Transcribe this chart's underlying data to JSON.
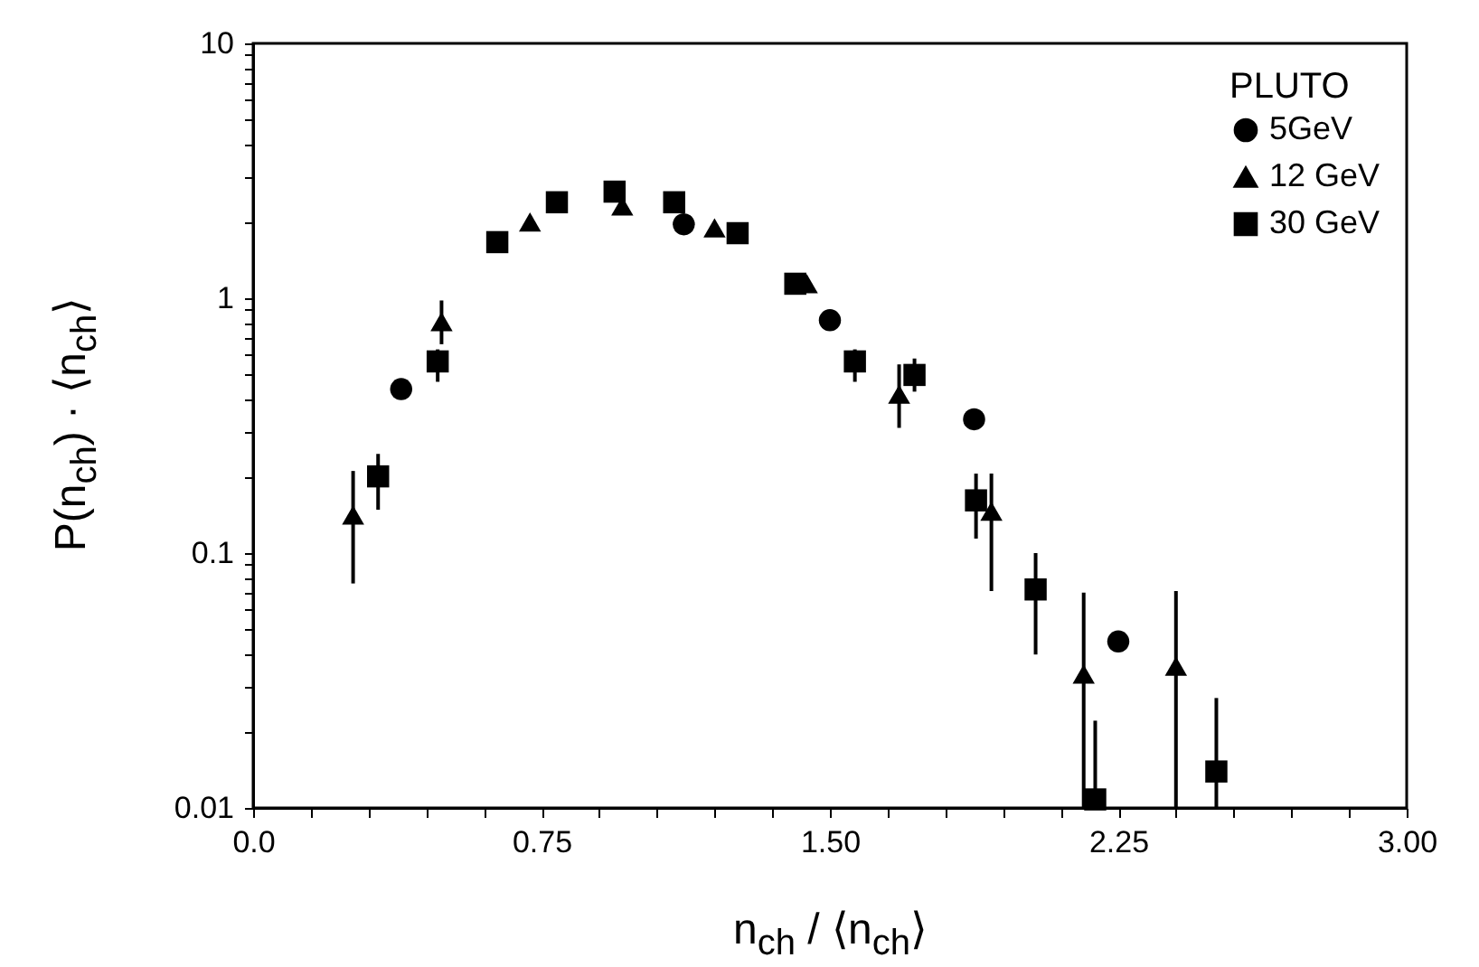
{
  "chart_data": {
    "type": "scatter",
    "xlabel": "n$_{ch}$ / ⟨n$_{ch}$⟩",
    "ylabel": "P(n$_{ch}$) · ⟨n$_{ch}$⟩",
    "legend_title": "PLUTO",
    "legend": "top right",
    "log": "y",
    "grid": false,
    "xlim": [
      0,
      3
    ],
    "xticks": [
      {
        "value": 0,
        "label": "0.0"
      },
      {
        "value": 0.15,
        "label": null
      },
      {
        "value": 0.3,
        "label": null
      },
      {
        "value": 0.45,
        "label": null
      },
      {
        "value": 0.6,
        "label": null
      },
      0.75,
      {
        "value": 0.9,
        "label": null
      },
      {
        "value": 1.05,
        "label": null
      },
      {
        "value": 1.2,
        "label": null
      },
      {
        "value": 1.35,
        "label": null
      },
      {
        "value": 1.5,
        "label": "1.50"
      },
      {
        "value": 1.65,
        "label": null
      },
      {
        "value": 1.8,
        "label": null
      },
      {
        "value": 1.95,
        "label": null
      },
      {
        "value": 2.1,
        "label": null
      },
      2.25,
      {
        "value": 2.4,
        "label": null
      },
      {
        "value": 2.55,
        "label": null
      },
      {
        "value": 2.7,
        "label": null
      },
      {
        "value": 2.85,
        "label": null
      },
      {
        "value": 3,
        "label": "3.00"
      }
    ],
    "ylim": [
      0.01,
      10
    ],
    "yticks": [
      0.01,
      {
        "value": 0.02,
        "label": null
      },
      {
        "value": 0.03,
        "label": null
      },
      {
        "value": 0.04,
        "label": null
      },
      {
        "value": 0.05,
        "label": null
      },
      {
        "value": 0.06,
        "label": null
      },
      {
        "value": 0.07,
        "label": null
      },
      {
        "value": 0.08,
        "label": null
      },
      {
        "value": 0.09,
        "label": null
      },
      0.1,
      {
        "value": 0.2,
        "label": null
      },
      {
        "value": 0.3,
        "label": null
      },
      {
        "value": 0.4,
        "label": null
      },
      {
        "value": 0.5,
        "label": null
      },
      {
        "value": 0.6,
        "label": null
      },
      {
        "value": 0.7,
        "label": null
      },
      {
        "value": 0.8,
        "label": null
      },
      {
        "value": 0.9,
        "label": null
      },
      1,
      {
        "value": 2,
        "label": null
      },
      {
        "value": 3,
        "label": null
      },
      {
        "value": 4,
        "label": null
      },
      {
        "value": 5,
        "label": null
      },
      {
        "value": 6,
        "label": null
      },
      {
        "value": 7,
        "label": null
      },
      {
        "value": 8,
        "label": null
      },
      {
        "value": 9,
        "label": null
      },
      10
    ],
    "series": [
      {
        "name": "5GeV",
        "color": "#000000",
        "marker": "circle",
        "x": [
          0.385,
          1.12,
          1.5,
          1.875,
          2.25
        ],
        "values": [
          0.44,
          1.95,
          0.82,
          0.335,
          0.045
        ]
      },
      {
        "name": "12 GeV",
        "color": "#000000",
        "marker": "triangle",
        "x": [
          0.26,
          0.49,
          0.72,
          0.96,
          1.2,
          1.44,
          1.68,
          1.92,
          2.16,
          2.4
        ],
        "values": [
          0.141,
          0.81,
          1.99,
          2.3,
          1.89,
          1.14,
          0.42,
          0.146,
          0.0335,
          0.036
        ],
        "errors": [
          [
            0.076,
            0.21
          ],
          [
            0.66,
            0.98
          ],
          null,
          null,
          null,
          null,
          [
            0.31,
            0.55
          ],
          [
            0.071,
            0.205
          ],
          [
            0.01,
            0.07
          ],
          [
            0.01,
            0.071
          ]
        ]
      },
      {
        "name": "30 GeV",
        "color": "#000000",
        "marker": "square",
        "x": [
          0.325,
          0.48,
          0.635,
          0.79,
          0.94,
          1.095,
          1.26,
          1.41,
          1.565,
          1.72,
          1.88,
          2.035,
          2.19,
          2.505
        ],
        "values": [
          0.2,
          0.565,
          1.66,
          2.38,
          2.62,
          2.38,
          1.8,
          1.14,
          0.565,
          0.5,
          0.161,
          0.072,
          0.0108,
          0.0139
        ],
        "errors": [
          [
            0.148,
            0.245
          ],
          [
            0.47,
            0.63
          ],
          null,
          null,
          null,
          null,
          null,
          null,
          [
            0.47,
            0.63
          ],
          [
            0.43,
            0.58
          ],
          [
            0.114,
            0.205
          ],
          [
            0.04,
            0.1
          ],
          [
            0.01,
            0.022
          ],
          [
            0.01,
            0.027
          ]
        ]
      }
    ]
  }
}
